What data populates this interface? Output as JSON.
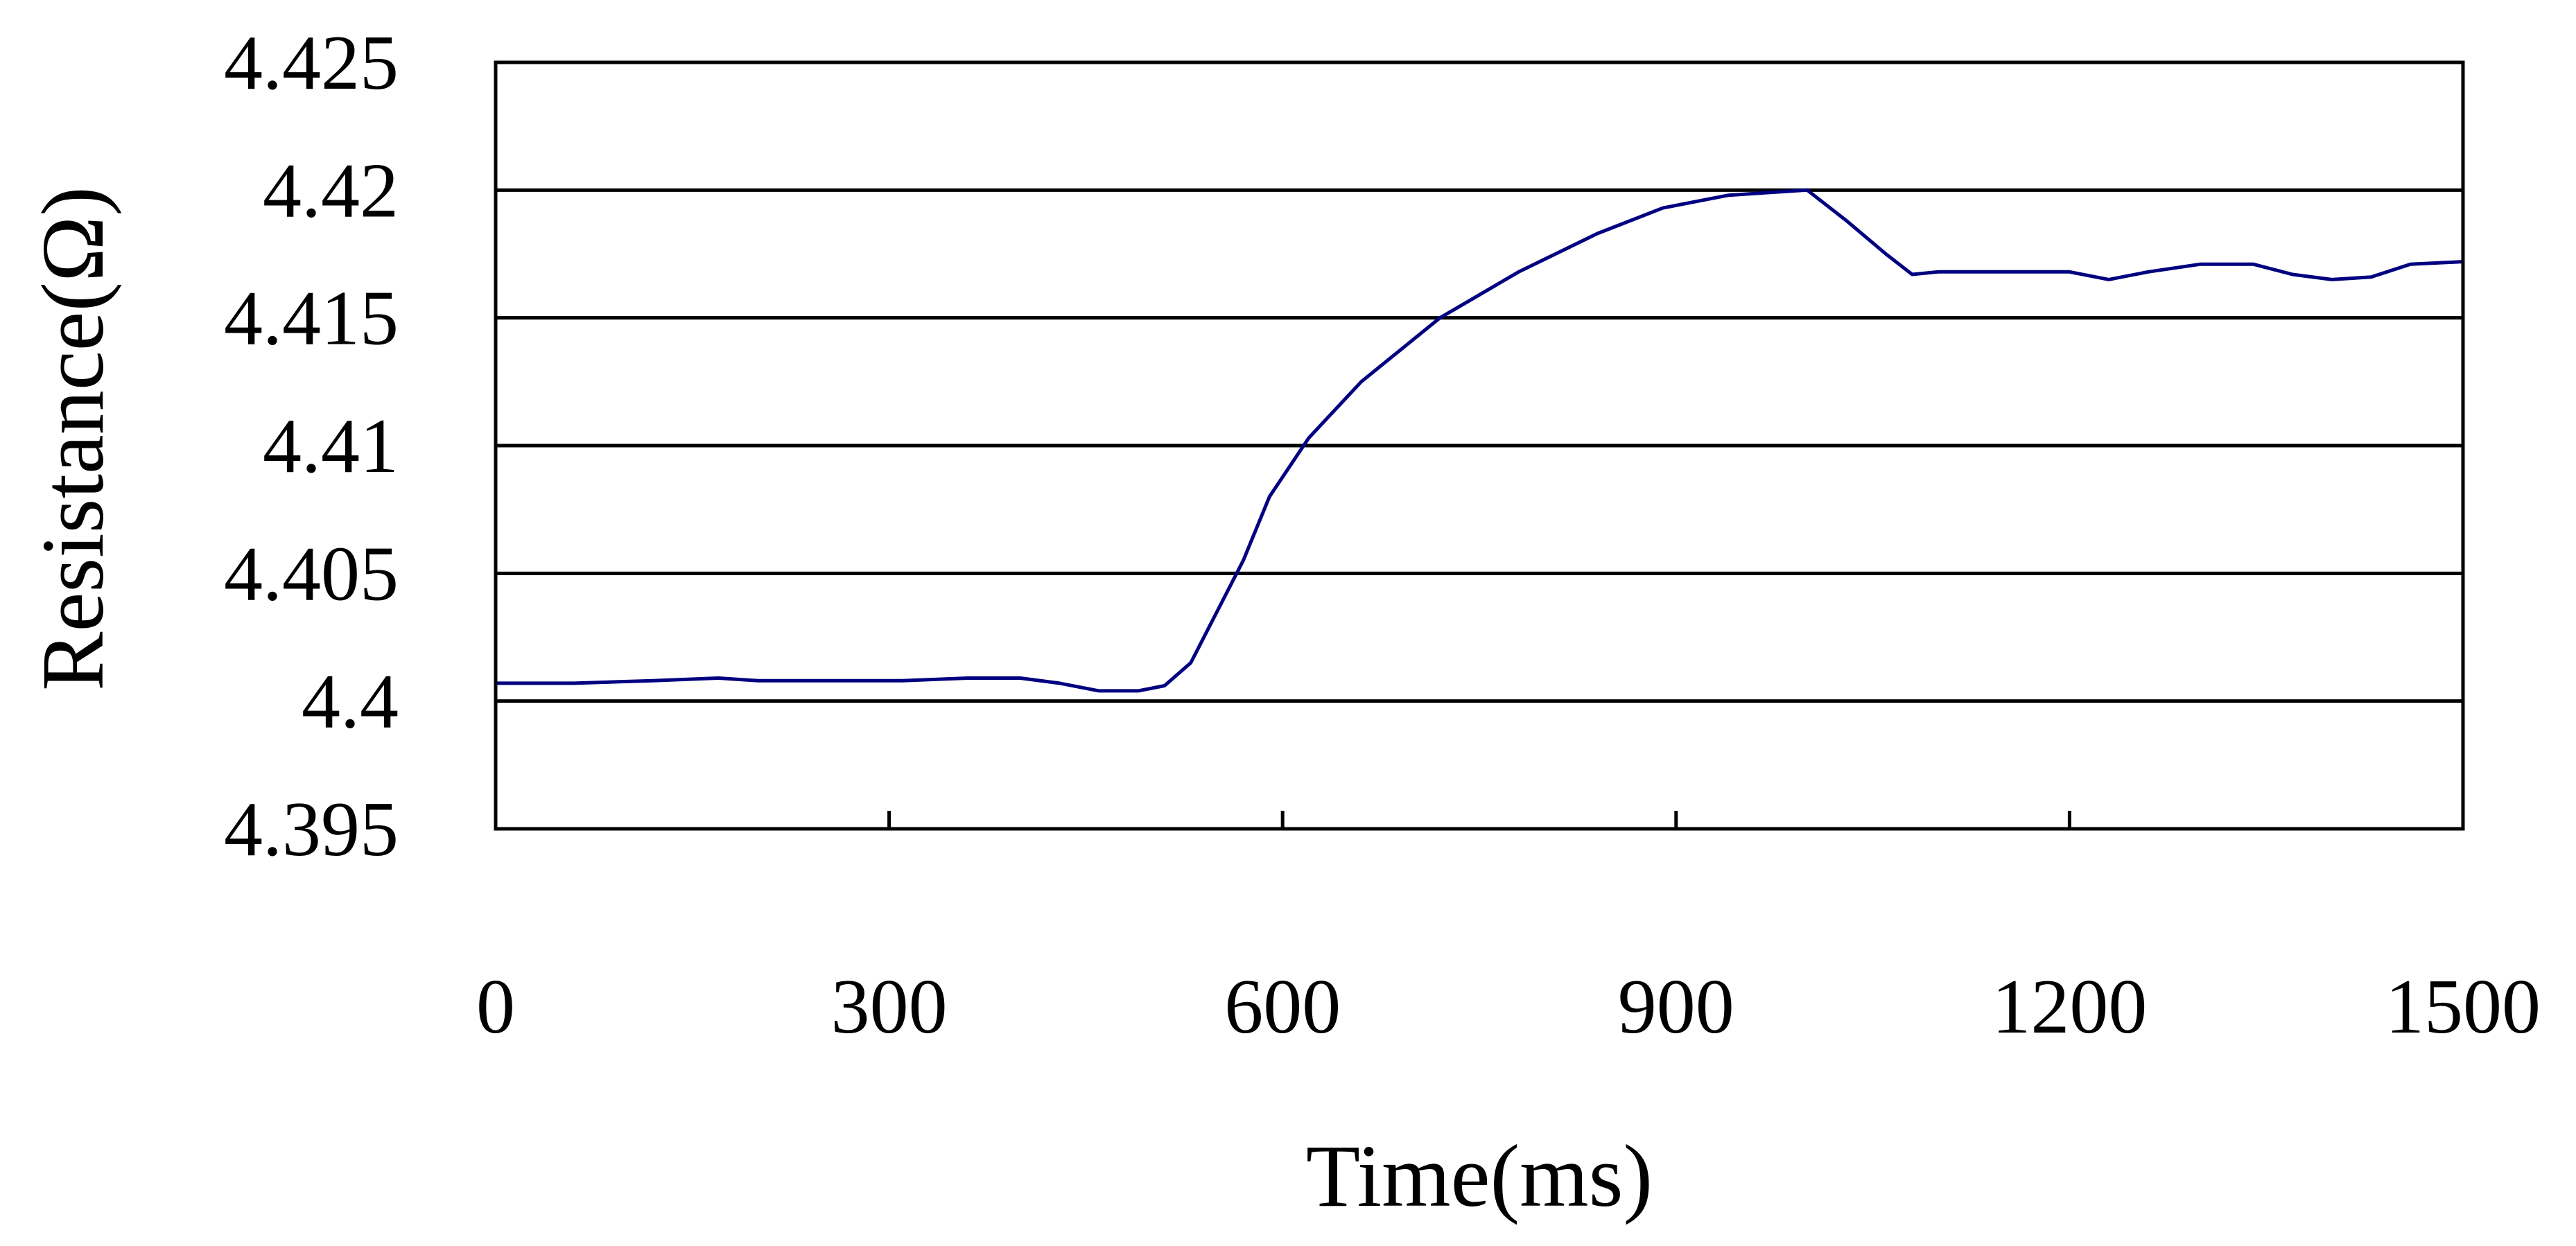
{
  "chart_data": {
    "type": "line",
    "title": "",
    "xlabel": "Time(ms)",
    "ylabel": "Resistance(Ω)",
    "xlim": [
      0,
      1500
    ],
    "ylim": [
      4.395,
      4.425
    ],
    "x_ticks": [
      "0",
      "300",
      "600",
      "900",
      "1200",
      "1500"
    ],
    "y_ticks": [
      "4.395",
      "4.4",
      "4.405",
      "4.41",
      "4.415",
      "4.42",
      "4.425"
    ],
    "grid": "horizontal",
    "legend": "none",
    "line_color": "#000080",
    "series": [
      {
        "x": [
          0,
          60,
          120,
          170,
          200,
          260,
          310,
          360,
          400,
          430,
          460,
          490,
          510,
          530,
          550,
          570,
          590,
          620,
          660,
          720,
          780,
          840,
          890,
          940,
          1000,
          1030,
          1060,
          1080,
          1100,
          1140,
          1200,
          1230,
          1260,
          1300,
          1340,
          1370,
          1400,
          1430,
          1460,
          1500
        ],
        "values": [
          4.4007,
          4.4007,
          4.4008,
          4.4009,
          4.4008,
          4.4008,
          4.4008,
          4.4009,
          4.4009,
          4.4007,
          4.4004,
          4.4004,
          4.4006,
          4.4015,
          4.4035,
          4.4055,
          4.408,
          4.4103,
          4.4125,
          4.415,
          4.4168,
          4.4183,
          4.4193,
          4.4198,
          4.42,
          4.4188,
          4.4175,
          4.4167,
          4.4168,
          4.4168,
          4.4168,
          4.4165,
          4.4168,
          4.4171,
          4.4171,
          4.4167,
          4.4165,
          4.4166,
          4.4171,
          4.4172
        ]
      }
    ]
  }
}
